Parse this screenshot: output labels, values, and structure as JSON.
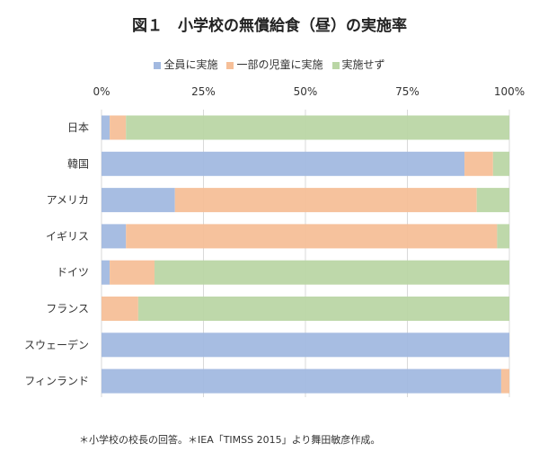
{
  "chart_data": {
    "type": "bar",
    "orientation": "horizontal",
    "stacked": true,
    "title": "図１　小学校の無償給食（昼）の実施率",
    "categories": [
      "日本",
      "韓国",
      "アメリカ",
      "イギリス",
      "ドイツ",
      "フランス",
      "スウェーデン",
      "フィンランド"
    ],
    "series": [
      {
        "name": "全員に実施",
        "color": "#a2b9e0",
        "values": [
          2,
          89,
          18,
          6,
          2,
          0,
          100,
          98
        ]
      },
      {
        "name": "一部の児童に実施",
        "color": "#f6bf98",
        "values": [
          4,
          7,
          74,
          91,
          11,
          9,
          0,
          2
        ]
      },
      {
        "name": "実施せず",
        "color": "#bad6a5",
        "values": [
          94,
          4,
          8,
          3,
          87,
          91,
          0,
          0
        ]
      }
    ],
    "xlim": [
      0,
      100
    ],
    "xticks": [
      "0%",
      "25%",
      "50%",
      "75%",
      "100%"
    ],
    "grid": true,
    "legend": "top",
    "footnote": "＊小学校の校長の回答。＊IEA「TIMSS 2015」より舞田敏彦作成。"
  }
}
